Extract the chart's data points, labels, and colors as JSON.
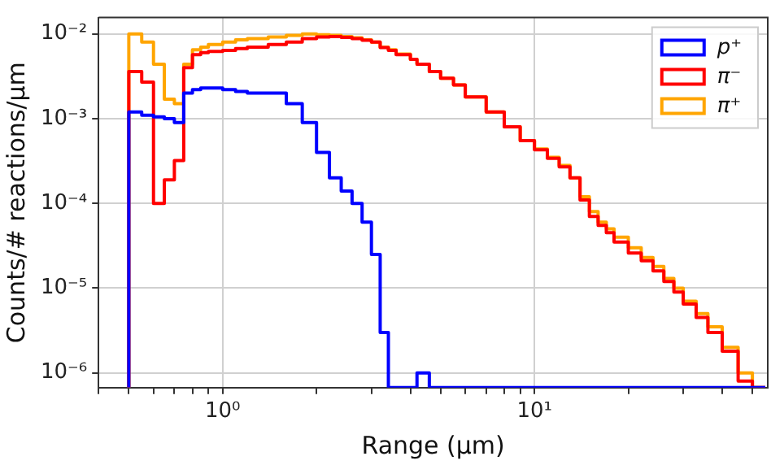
{
  "chart_data": {
    "type": "histogram",
    "xlabel": "Range (μm)",
    "ylabel": "Counts/# reactions/μm",
    "log": "xy",
    "grid": true,
    "legend": "top right",
    "xlim": [
      0.4,
      56
    ],
    "ylim": [
      6.7e-07,
      0.0156
    ],
    "xticks": [
      {
        "value": 0.4,
        "label": null
      },
      {
        "value": 0.5,
        "label": null
      },
      {
        "value": 0.6,
        "label": null
      },
      {
        "value": 0.7,
        "label": null
      },
      {
        "value": 0.8,
        "label": null
      },
      {
        "value": 0.9,
        "label": null
      },
      {
        "value": 1,
        "label": "10⁰"
      },
      {
        "value": 2,
        "label": null
      },
      {
        "value": 3,
        "label": null
      },
      {
        "value": 4,
        "label": null
      },
      {
        "value": 5,
        "label": null
      },
      {
        "value": 6,
        "label": null
      },
      {
        "value": 7,
        "label": null
      },
      {
        "value": 8,
        "label": null
      },
      {
        "value": 9,
        "label": null
      },
      {
        "value": 10,
        "label": "10¹"
      },
      {
        "value": 20,
        "label": null
      },
      {
        "value": 30,
        "label": null
      },
      {
        "value": 40,
        "label": null
      },
      {
        "value": 50,
        "label": null
      }
    ],
    "yticks": [
      {
        "value": 1e-06,
        "label": "10⁻⁶"
      },
      {
        "value": 1e-05,
        "label": "10⁻⁵"
      },
      {
        "value": 0.0001,
        "label": "10⁻⁴"
      },
      {
        "value": 0.001,
        "label": "10⁻³"
      },
      {
        "value": 0.01,
        "label": "10⁻²"
      }
    ],
    "bins": [
      0.5,
      0.55,
      0.6,
      0.65,
      0.7,
      0.75,
      0.8,
      0.85,
      0.9,
      1.0,
      1.1,
      1.2,
      1.4,
      1.6,
      1.8,
      2.0,
      2.2,
      2.4,
      2.6,
      2.8,
      3.0,
      3.2,
      3.4,
      3.6,
      4.0,
      4.2,
      4.6,
      5.0,
      5.5,
      6,
      7,
      8,
      9,
      10,
      11,
      12,
      13,
      14,
      15,
      16,
      17,
      18,
      20,
      22,
      24,
      26,
      28,
      30,
      33,
      36,
      40,
      45,
      50,
      55
    ],
    "series": [
      {
        "name": "p⁺",
        "color": "#0000ff",
        "values": [
          0.0012,
          0.0011,
          0.00105,
          0.001,
          0.0009,
          0.002,
          0.0022,
          0.0023,
          0.0023,
          0.0022,
          0.0021,
          0.002,
          0.002,
          0.0015,
          0.0009,
          0.0004,
          0.0002,
          0.00014,
          0.0001,
          6e-05,
          2.5e-05,
          3e-06,
          null,
          null,
          null,
          1e-06,
          null,
          null,
          null,
          null,
          null,
          null,
          null,
          null,
          null,
          null,
          null,
          null,
          null,
          null,
          null,
          null,
          null,
          null,
          null,
          null,
          null,
          null,
          null,
          null,
          null,
          null,
          null
        ]
      },
      {
        "name": "π⁻",
        "color": "#ff0000",
        "values": [
          0.0036,
          0.0027,
          0.0001,
          0.00019,
          0.00032,
          0.004,
          0.0057,
          0.006,
          0.0062,
          0.0064,
          0.0067,
          0.007,
          0.0075,
          0.008,
          0.0088,
          0.0092,
          0.0093,
          0.0091,
          0.0088,
          0.0084,
          0.008,
          0.0069,
          0.0064,
          0.0057,
          0.005,
          0.0044,
          0.0036,
          0.003,
          0.0025,
          0.0018,
          0.0012,
          0.0008,
          0.00055,
          0.00043,
          0.00034,
          0.00027,
          0.0002,
          0.00011,
          7e-05,
          5.5e-05,
          4.5e-05,
          3.5e-05,
          2.6e-05,
          2.1e-05,
          1.6e-05,
          1.2e-05,
          9e-06,
          6.5e-06,
          4.5e-06,
          3e-06,
          1.8e-06,
          8e-07,
          null
        ]
      },
      {
        "name": "π⁺",
        "color": "#ffa500",
        "values": [
          0.01,
          0.008,
          0.0044,
          0.0017,
          0.0015,
          0.0044,
          0.0065,
          0.007,
          0.0075,
          0.008,
          0.0085,
          0.0088,
          0.0092,
          0.0096,
          0.01,
          0.0098,
          0.0096,
          0.0093,
          0.009,
          0.0085,
          0.008,
          0.007,
          0.0065,
          0.0058,
          0.005,
          0.0044,
          0.0036,
          0.003,
          0.0025,
          0.0018,
          0.0012,
          0.0008,
          0.00055,
          0.00044,
          0.00035,
          0.00028,
          0.0002,
          0.00012,
          8e-05,
          6e-05,
          5e-05,
          4e-05,
          3e-05,
          2.3e-05,
          1.8e-05,
          1.3e-05,
          1e-05,
          7e-06,
          5e-06,
          3.5e-06,
          2e-06,
          1e-06,
          null
        ]
      }
    ]
  }
}
